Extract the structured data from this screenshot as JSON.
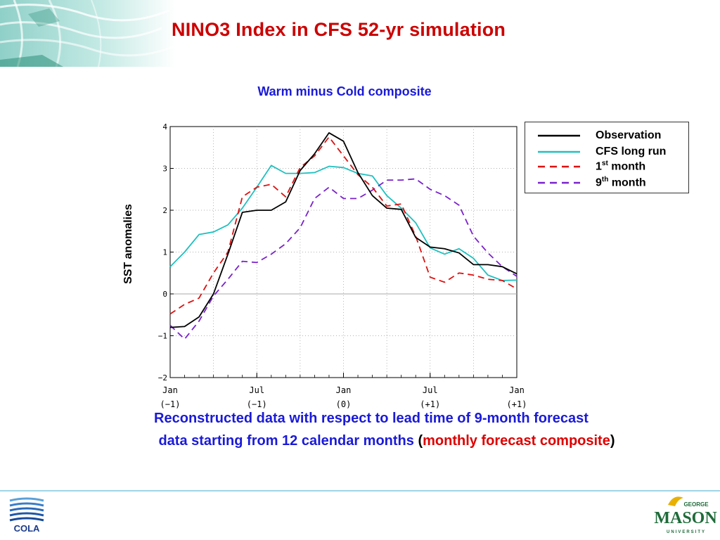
{
  "slide": {
    "title": "NINO3 Index in CFS 52-yr simulation",
    "caption_line1": "Reconstructed data with respect to lead time of 9-month forecast",
    "caption_line2_main": "data starting from 12 calendar months ",
    "caption_line2_open": "(",
    "caption_line2_red": "monthly forecast composite",
    "caption_line2_close": ")",
    "logo_left_text": "COLA",
    "logo_right_top": "GEORGE",
    "logo_right_main": "MASON",
    "logo_right_bottom": "UNIVERSITY"
  },
  "colors": {
    "title": "#cc0000",
    "blue_text": "#1a1ad8",
    "observation": "#000000",
    "cfs_long_run": "#20c0c0",
    "month1": "#dd1111",
    "month9": "#7a22cc"
  },
  "chart_data": {
    "type": "line",
    "title": "Warm minus Cold composite",
    "ylabel": "SST anomalies",
    "xlabel": "",
    "ylim": [
      -2,
      4
    ],
    "yticks": [
      "4",
      "3",
      "2",
      "1",
      "0",
      "−1",
      "−2"
    ],
    "ytick_values": [
      4,
      3,
      2,
      1,
      0,
      -1,
      -2
    ],
    "xlim": [
      0,
      24
    ],
    "xticks": [
      {
        "x": 0,
        "line1": "Jan",
        "line2": "(−1)"
      },
      {
        "x": 6,
        "line1": "Jul",
        "line2": "(−1)"
      },
      {
        "x": 12,
        "line1": "Jan",
        "line2": "(0)"
      },
      {
        "x": 18,
        "line1": "Jul",
        "line2": "(+1)"
      },
      {
        "x": 24,
        "line1": "Jan",
        "line2": "(+1)"
      }
    ],
    "vgrid": [
      3,
      6,
      9,
      12,
      15,
      18,
      21
    ],
    "hgrid": [
      -1,
      1,
      2,
      3
    ],
    "zero_line": 0,
    "legend_position": "top-right",
    "series": [
      {
        "name": "Observation",
        "sup": "",
        "suffix": "",
        "style": "solid",
        "color": "#000000",
        "values": [
          -0.8,
          -0.78,
          -0.55,
          0.0,
          0.95,
          1.95,
          2.0,
          2.0,
          2.2,
          2.95,
          3.35,
          3.85,
          3.65,
          2.9,
          2.35,
          2.05,
          2.02,
          1.35,
          1.12,
          1.08,
          0.98,
          0.7,
          0.7,
          0.65,
          0.48
        ]
      },
      {
        "name": "CFS long run",
        "sup": "",
        "suffix": "",
        "style": "solid",
        "color": "#20c0c0",
        "values": [
          0.65,
          1.0,
          1.42,
          1.48,
          1.65,
          2.05,
          2.55,
          3.07,
          2.88,
          2.88,
          2.9,
          3.05,
          3.02,
          2.88,
          2.82,
          2.35,
          2.05,
          1.7,
          1.1,
          0.95,
          1.08,
          0.85,
          0.45,
          0.32,
          0.33
        ]
      },
      {
        "name": "1",
        "sup": "st",
        "suffix": " month",
        "style": "dashed",
        "color": "#dd1111",
        "values": [
          -0.48,
          -0.25,
          -0.1,
          0.5,
          1.0,
          2.32,
          2.55,
          2.62,
          2.32,
          3.02,
          3.3,
          3.75,
          3.3,
          2.85,
          2.55,
          2.1,
          2.15,
          1.38,
          0.4,
          0.28,
          0.5,
          0.45,
          0.35,
          0.32,
          0.12
        ]
      },
      {
        "name": "9",
        "sup": "th",
        "suffix": " month",
        "style": "dashed",
        "color": "#7a22cc",
        "values": [
          -0.75,
          -1.08,
          -0.65,
          -0.05,
          0.35,
          0.78,
          0.75,
          0.95,
          1.2,
          1.58,
          2.28,
          2.55,
          2.28,
          2.28,
          2.48,
          2.72,
          2.72,
          2.75,
          2.5,
          2.35,
          2.12,
          1.38,
          0.98,
          0.65,
          0.42
        ]
      }
    ]
  }
}
